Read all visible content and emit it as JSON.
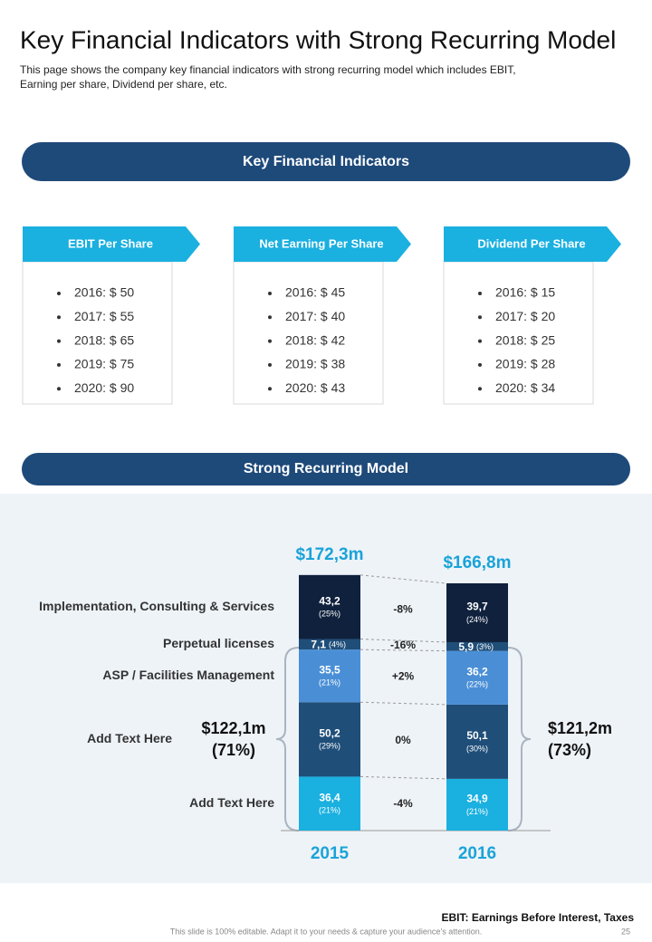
{
  "header": {
    "title": "Key Financial Indicators with Strong Recurring Model",
    "subtitle_lines": [
      "This page shows the company key financial indicators with strong recurring model which includes EBIT,",
      "Earning per share, Dividend  per share, etc."
    ]
  },
  "section1": "Key Financial Indicators",
  "indicators": [
    {
      "title": "EBIT Per Share",
      "items": [
        "2016: $ 50",
        "2017: $ 55",
        "2018: $ 65",
        "2019: $ 75",
        "2020: $ 90"
      ]
    },
    {
      "title": "Net Earning Per Share",
      "items": [
        "2016: $ 45",
        "2017: $ 40",
        "2018: $ 42",
        "2019: $ 38",
        "2020: $ 43"
      ]
    },
    {
      "title": "Dividend  Per Share",
      "items": [
        "2016: $ 15",
        "2017: $ 20",
        "2018: $ 25",
        "2019: $ 28",
        "2020: $ 34"
      ]
    }
  ],
  "section2": "Strong Recurring Model",
  "chart_data": {
    "type": "stacked_bar",
    "categories": [
      "2015",
      "2016"
    ],
    "totals": [
      {
        "value": 172.3,
        "label": "$172,3m"
      },
      {
        "value": 166.8,
        "label": "$166,8m"
      }
    ],
    "subtotals": [
      {
        "value": 122.1,
        "label": "$122,1m",
        "share": 71,
        "share_label": "(71%)"
      },
      {
        "value": 121.2,
        "label": "$121,2m",
        "share": 73,
        "share_label": "(73%)"
      }
    ],
    "series": [
      {
        "name": "Implementation, Consulting & Services",
        "color": "#0f213d",
        "values": [
          43.2,
          39.7
        ],
        "value_labels": [
          "43,2",
          "39,7"
        ],
        "shares": [
          25,
          24
        ],
        "share_labels": [
          "(25%)",
          "(24%)"
        ],
        "change": {
          "value": -8,
          "label": "-8%"
        }
      },
      {
        "name": "Perpetual licenses",
        "color": "#1f4e79",
        "values": [
          7.1,
          5.9
        ],
        "value_labels": [
          "7,1",
          "5,9"
        ],
        "shares": [
          4,
          3
        ],
        "share_labels": [
          "(4%)",
          "(3%)"
        ],
        "change": {
          "value": -16,
          "label": "-16%"
        }
      },
      {
        "name": "ASP / Facilities Management",
        "color": "#4a8fd6",
        "values": [
          35.5,
          36.2
        ],
        "value_labels": [
          "35,5",
          "36,2"
        ],
        "shares": [
          21,
          22
        ],
        "share_labels": [
          "(21%)",
          "(22%)"
        ],
        "change": {
          "value": 2,
          "label": "+2%"
        }
      },
      {
        "name": "Add  Text Here",
        "color": "#1f4e79",
        "values": [
          50.2,
          50.1
        ],
        "value_labels": [
          "50,2",
          "50,1"
        ],
        "shares": [
          29,
          30
        ],
        "share_labels": [
          "(29%)",
          "(30%)"
        ],
        "change": {
          "value": 0,
          "label": "0%"
        }
      },
      {
        "name": "Add  Text Here",
        "color": "#1ab0e0",
        "values": [
          36.4,
          34.9
        ],
        "value_labels": [
          "36,4",
          "34,9"
        ],
        "shares": [
          21,
          21
        ],
        "share_labels": [
          "(21%)",
          "(21%)"
        ],
        "change": {
          "value": -4,
          "label": "-4%"
        }
      }
    ]
  },
  "footer": {
    "note": "EBIT: Earnings Before Interest, Taxes",
    "editable": "This slide is 100% editable.  Adapt it to your needs & capture your audience’s attention.",
    "page": "25"
  }
}
